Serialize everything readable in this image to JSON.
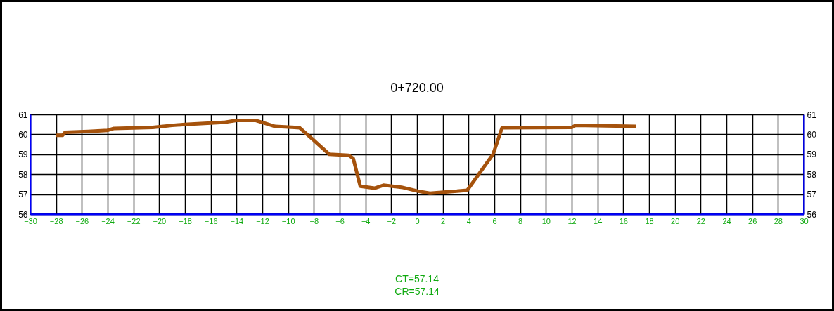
{
  "chart_data": {
    "type": "line",
    "title": "0+720.00",
    "x": [
      -28,
      -27.5,
      -27.3,
      -25.5,
      -24,
      -23.5,
      -20.5,
      -19,
      -18,
      -15,
      -14,
      -12.5,
      -12,
      -11,
      -9.5,
      -9.1,
      -8,
      -6.8,
      -5.3,
      -4.95,
      -4.4,
      -3.3,
      -2.6,
      -1.2,
      0.1,
      1,
      3.1,
      3.9,
      5.9,
      6.6,
      12,
      12.3,
      17
    ],
    "series": [
      {
        "color": "#a5520c",
        "values": [
          59.95,
          59.95,
          60.1,
          60.15,
          60.2,
          60.3,
          60.35,
          60.45,
          60.5,
          60.6,
          60.7,
          60.7,
          60.6,
          60.4,
          60.35,
          60.33,
          59.7,
          59.0,
          58.95,
          58.8,
          57.4,
          57.3,
          57.45,
          57.35,
          57.15,
          57.05,
          57.15,
          57.2,
          59.0,
          60.33,
          60.35,
          60.45,
          60.4
        ]
      }
    ],
    "xlim": [
      -30,
      30
    ],
    "xticks": [
      -30,
      -28,
      -26,
      -24,
      -22,
      -20,
      -18,
      -16,
      -14,
      -12,
      -10,
      -8,
      -6,
      -4,
      -2,
      0,
      2,
      4,
      6,
      8,
      10,
      12,
      14,
      16,
      18,
      20,
      22,
      24,
      26,
      28,
      30
    ],
    "ylim": [
      56,
      61
    ],
    "yticks": [
      56,
      57,
      58,
      59,
      60,
      61
    ],
    "y2lim": [
      56,
      61
    ],
    "y2ticks": [
      56,
      57,
      58,
      59,
      60,
      61
    ],
    "grid": true,
    "marker": "none",
    "line_style": "solid",
    "annotations": [
      "CT=57.14",
      "CR=57.14"
    ]
  }
}
